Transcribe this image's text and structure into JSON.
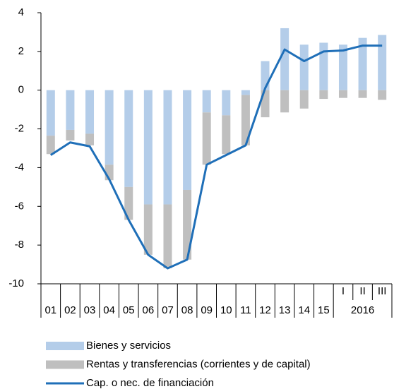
{
  "chart_data": {
    "type": "bar-line",
    "categories": [
      "01",
      "02",
      "03",
      "04",
      "05",
      "06",
      "07",
      "08",
      "09",
      "10",
      "11",
      "12",
      "13",
      "14",
      "15",
      "I",
      "II",
      "III"
    ],
    "group_label": "2016",
    "series": [
      {
        "name": "Bienes y servicios",
        "color": "#b4cde9",
        "kind": "bar",
        "values": [
          -2.35,
          -2.05,
          -2.25,
          -3.85,
          -5.0,
          -5.9,
          -5.9,
          -5.15,
          -1.15,
          -1.3,
          -0.25,
          1.5,
          3.2,
          2.35,
          2.45,
          2.35,
          2.7,
          2.85
        ]
      },
      {
        "name": "Rentas y transferencias (corrientes y de capital)",
        "color": "#bfbfbf",
        "kind": "bar",
        "values": [
          -0.95,
          -0.55,
          -0.6,
          -0.8,
          -1.7,
          -2.6,
          -3.3,
          -3.6,
          -2.7,
          -2.0,
          -2.6,
          -1.4,
          -1.15,
          -0.95,
          -0.45,
          -0.4,
          -0.4,
          -0.5
        ]
      },
      {
        "name": "Cap. o nec. de financiación",
        "color": "#1f6fb8",
        "kind": "line",
        "values": [
          -3.35,
          -2.7,
          -2.9,
          -4.6,
          -6.7,
          -8.5,
          -9.2,
          -8.75,
          -3.85,
          -3.35,
          -2.85,
          0.1,
          2.1,
          1.5,
          2.0,
          2.05,
          2.3,
          2.3
        ]
      }
    ],
    "ylim": [
      -10,
      4
    ],
    "yticks": [
      -10,
      -8,
      -6,
      -4,
      -2,
      0,
      2,
      4
    ]
  }
}
